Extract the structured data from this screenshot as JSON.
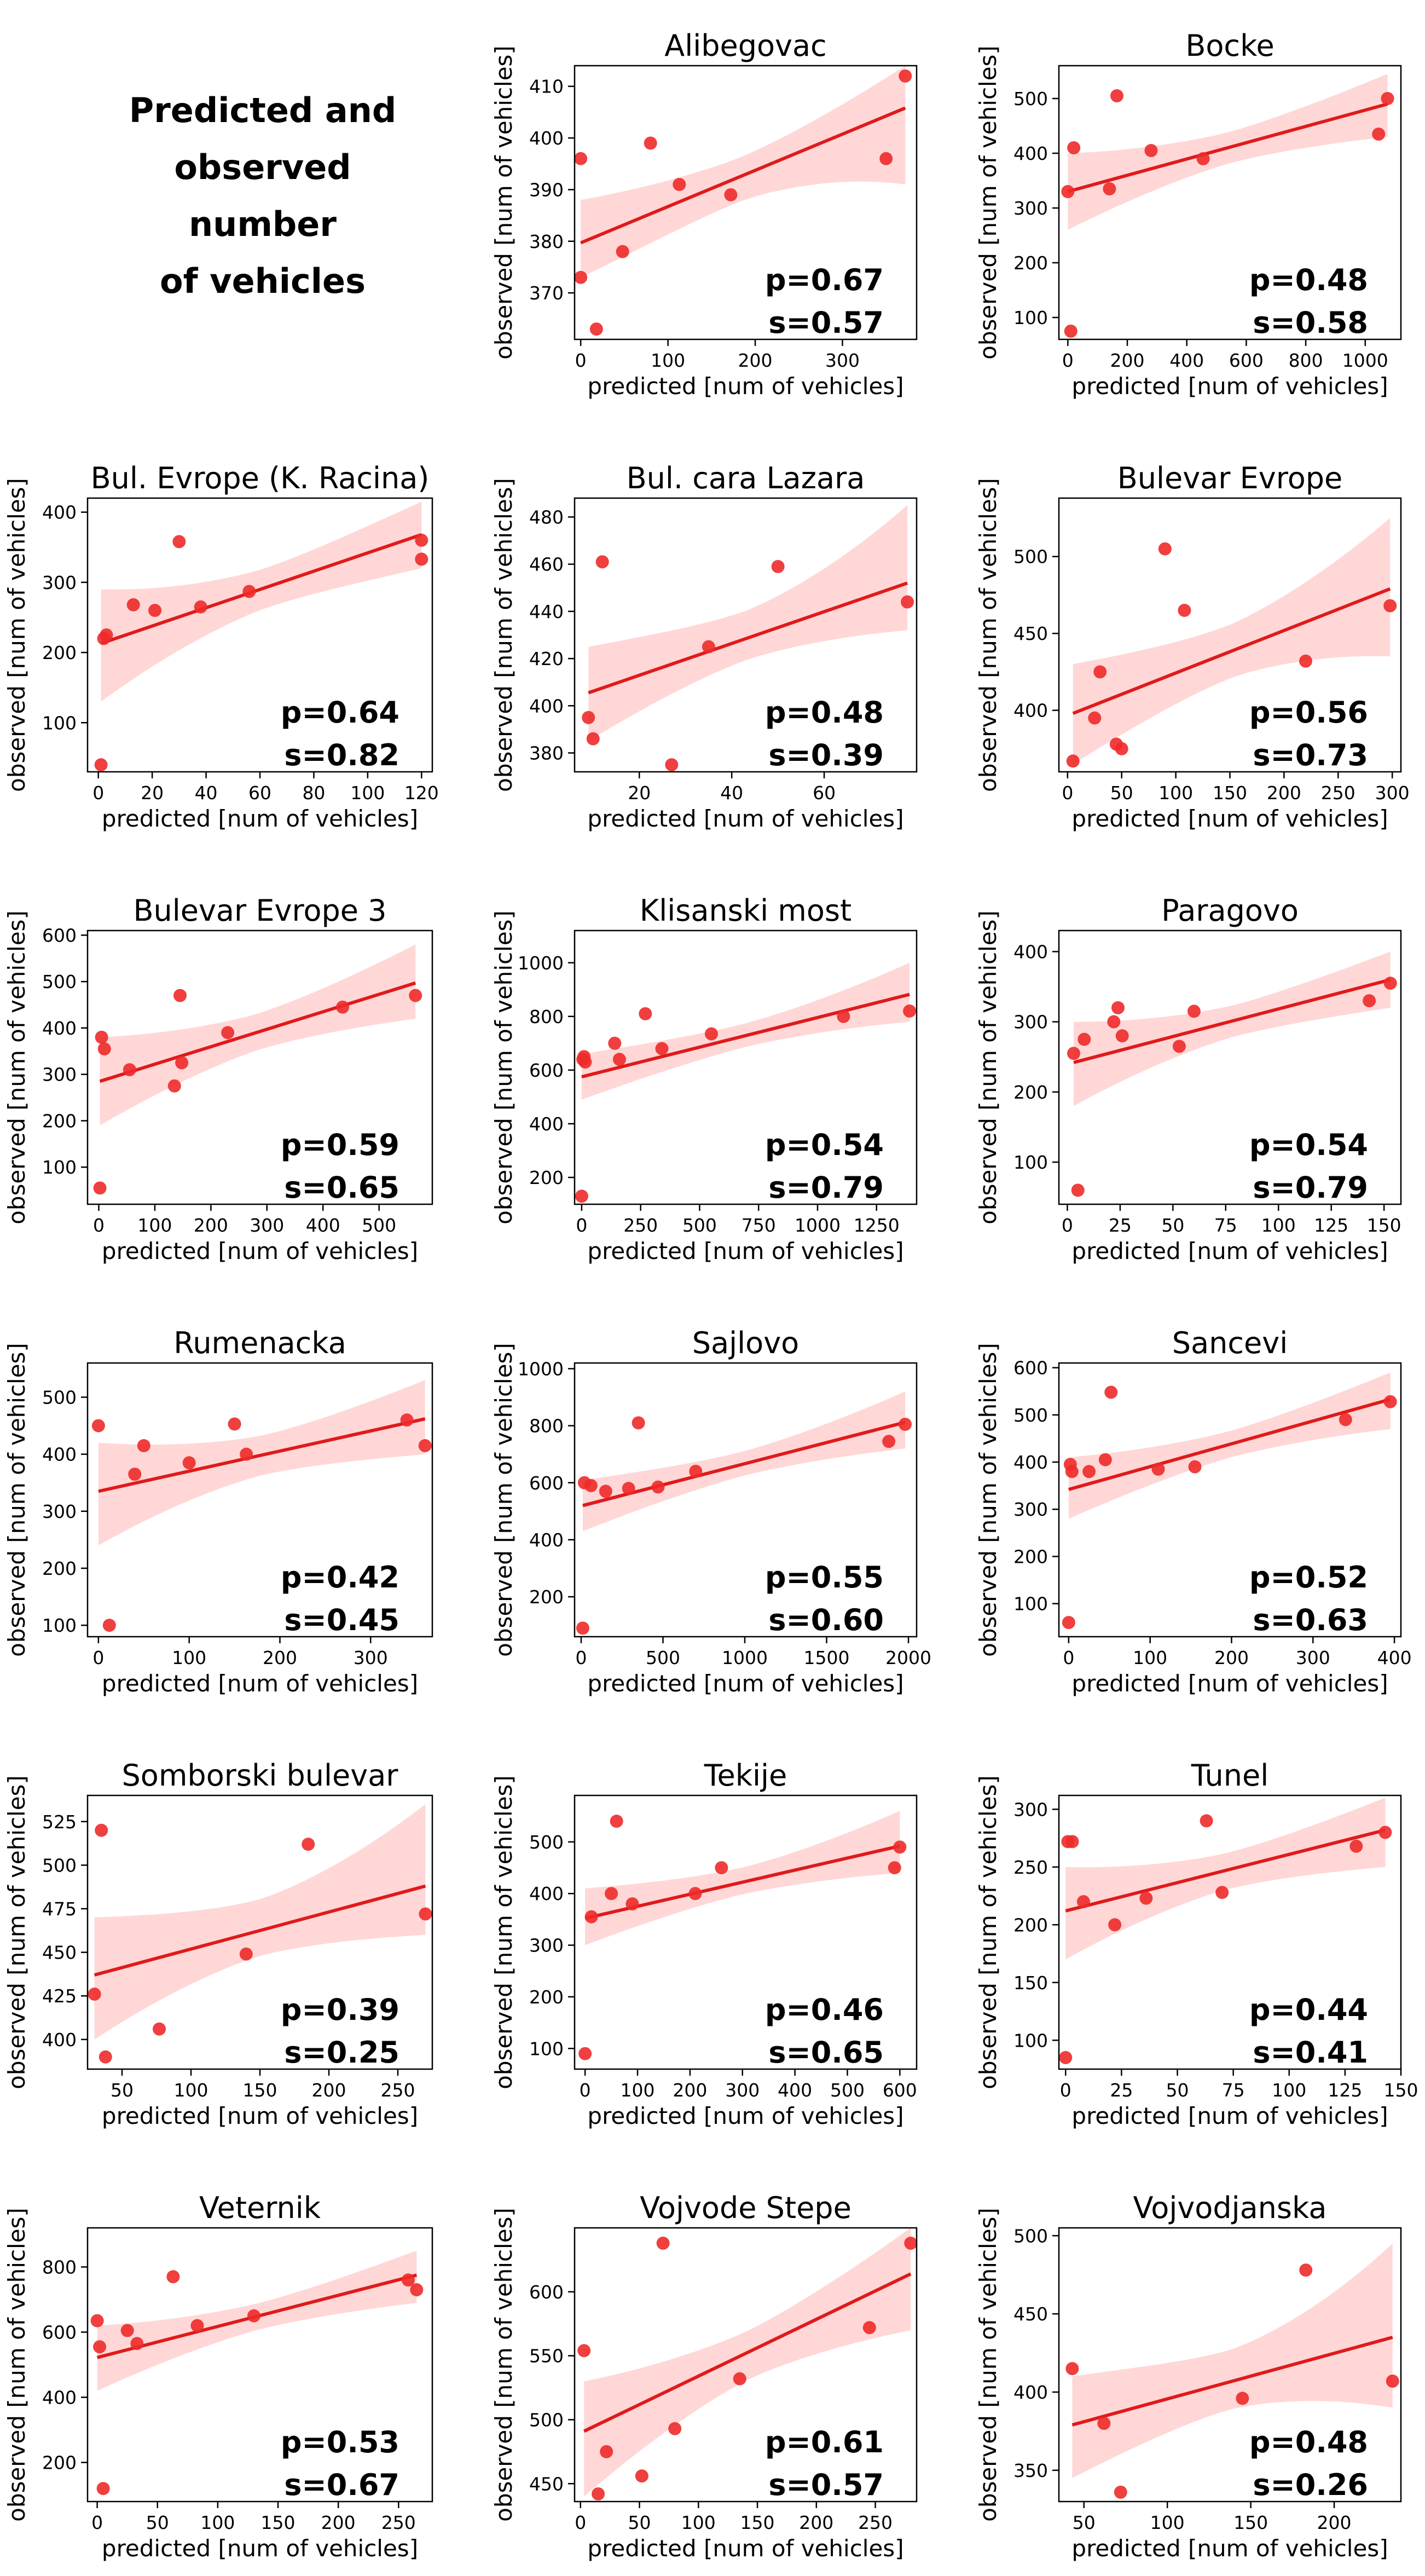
{
  "figure_title": [
    "Predicted and",
    "observed",
    "number",
    "of vehicles"
  ],
  "colors": {
    "point": "#ee2a2a",
    "line": "#e01a1a",
    "band": "#ffd0d0",
    "text": "#000000"
  },
  "chart_data": [
    {
      "type": "scatter",
      "title": "Alibegovac",
      "xlabel": "predicted [num of vehicles]",
      "ylabel": "observed [num of vehicles]",
      "xlim": [
        -7,
        385
      ],
      "ylim": [
        361,
        414
      ],
      "xticks": [
        0,
        100,
        200,
        300
      ],
      "yticks": [
        370,
        380,
        390,
        400,
        410
      ],
      "x": [
        0,
        0,
        18,
        48,
        80,
        113,
        172,
        350,
        372
      ],
      "y": [
        373,
        396,
        363,
        378,
        399,
        391,
        389,
        396,
        412
      ],
      "fit_y": [
        379.7,
        405.8
      ],
      "band_lower": [
        373,
        391
      ],
      "band_upper": [
        388,
        414
      ],
      "p": "p=0.67",
      "s": "s=0.57"
    },
    {
      "type": "scatter",
      "title": "Bocke",
      "xlabel": "predicted [num of vehicles]",
      "ylabel": "observed [num of vehicles]",
      "xlim": [
        -30,
        1120
      ],
      "ylim": [
        60,
        560
      ],
      "xticks": [
        0,
        200,
        400,
        600,
        800,
        1000
      ],
      "yticks": [
        100,
        200,
        300,
        400,
        500
      ],
      "x": [
        0,
        10,
        20,
        140,
        165,
        280,
        455,
        1045,
        1075
      ],
      "y": [
        330,
        75,
        410,
        335,
        505,
        405,
        390,
        435,
        500
      ],
      "fit_y": [
        330,
        490
      ],
      "band_lower": [
        260,
        430
      ],
      "band_upper": [
        400,
        545
      ],
      "p": "p=0.48",
      "s": "s=0.58"
    },
    {
      "type": "scatter",
      "title": "Bul. Evrope (K. Racina)",
      "xlabel": "predicted [num of vehicles]",
      "ylabel": "observed [num of vehicles]",
      "xlim": [
        -4,
        124
      ],
      "ylim": [
        30,
        420
      ],
      "xticks": [
        0,
        20,
        40,
        60,
        80,
        100,
        120
      ],
      "yticks": [
        100,
        200,
        300,
        400
      ],
      "x": [
        1,
        2,
        3,
        13,
        21,
        30,
        38,
        56,
        120,
        120
      ],
      "y": [
        40,
        220,
        225,
        268,
        260,
        358,
        265,
        287,
        333,
        360
      ],
      "fit_y": [
        213,
        368
      ],
      "band_lower": [
        130,
        320
      ],
      "band_upper": [
        290,
        415
      ],
      "p": "p=0.64",
      "s": "s=0.82"
    },
    {
      "type": "scatter",
      "title": "Bul. cara Lazara",
      "xlabel": "predicted [num of vehicles]",
      "ylabel": "observed [num of vehicles]",
      "xlim": [
        6,
        80
      ],
      "ylim": [
        372,
        488
      ],
      "xticks": [
        20,
        40,
        60
      ],
      "yticks": [
        380,
        400,
        420,
        440,
        460,
        480
      ],
      "x": [
        9,
        10,
        12,
        27,
        35,
        50,
        78
      ],
      "y": [
        395,
        386,
        461,
        375,
        425,
        459,
        444
      ],
      "fit_y": [
        405.5,
        452
      ],
      "band_lower": [
        385,
        432
      ],
      "band_upper": [
        425,
        485
      ],
      "p": "p=0.48",
      "s": "s=0.39"
    },
    {
      "type": "scatter",
      "title": "Bulevar Evrope",
      "xlabel": "predicted [num of vehicles]",
      "ylabel": "observed [num of vehicles]",
      "xlim": [
        -8,
        308
      ],
      "ylim": [
        360,
        538
      ],
      "xticks": [
        0,
        50,
        100,
        150,
        200,
        250,
        300
      ],
      "yticks": [
        400,
        450,
        500
      ],
      "x": [
        5,
        25,
        30,
        45,
        50,
        90,
        108,
        220,
        298
      ],
      "y": [
        367,
        395,
        425,
        378,
        375,
        505,
        465,
        432,
        468
      ],
      "fit_y": [
        398,
        479
      ],
      "band_lower": [
        365,
        435
      ],
      "band_upper": [
        430,
        525
      ],
      "p": "p=0.56",
      "s": "s=0.73"
    },
    {
      "type": "scatter",
      "title": "Bulevar Evrope 3",
      "xlabel": "predicted [num of vehicles]",
      "ylabel": "observed [num of vehicles]",
      "xlim": [
        -20,
        595
      ],
      "ylim": [
        20,
        610
      ],
      "xticks": [
        0,
        100,
        200,
        300,
        400,
        500,
        600
      ],
      "yticks": [
        100,
        200,
        300,
        400,
        500,
        600
      ],
      "x": [
        2,
        5,
        10,
        55,
        135,
        145,
        148,
        230,
        435,
        565
      ],
      "y": [
        55,
        380,
        355,
        310,
        275,
        470,
        325,
        390,
        445,
        470
      ],
      "fit_y": [
        285,
        497
      ],
      "band_lower": [
        190,
        420
      ],
      "band_upper": [
        380,
        580
      ],
      "p": "p=0.59",
      "s": "s=0.65"
    },
    {
      "type": "scatter",
      "title": "Klisanski most",
      "xlabel": "predicted [num of vehicles]",
      "ylabel": "observed [num of vehicles]",
      "xlim": [
        -30,
        1420
      ],
      "ylim": [
        100,
        1120
      ],
      "xticks": [
        0,
        250,
        500,
        750,
        1000,
        1250
      ],
      "yticks": [
        200,
        400,
        600,
        800,
        1000
      ],
      "x": [
        0,
        5,
        10,
        15,
        140,
        160,
        270,
        340,
        550,
        1110,
        1390
      ],
      "y": [
        130,
        640,
        650,
        630,
        700,
        640,
        810,
        680,
        735,
        800,
        820
      ],
      "fit_y": [
        575,
        882
      ],
      "band_lower": [
        490,
        780
      ],
      "band_upper": [
        660,
        1000
      ],
      "p": "p=0.54",
      "s": "s=0.79"
    },
    {
      "type": "scatter",
      "title": "Paragovo",
      "xlabel": "predicted [num of vehicles]",
      "ylabel": "observed [num of vehicles]",
      "xlim": [
        -4,
        158
      ],
      "ylim": [
        40,
        430
      ],
      "xticks": [
        0,
        25,
        50,
        75,
        100,
        125,
        150
      ],
      "yticks": [
        100,
        200,
        300,
        400
      ],
      "x": [
        3,
        5,
        8,
        22,
        24,
        26,
        53,
        60,
        143,
        153
      ],
      "y": [
        255,
        60,
        275,
        300,
        320,
        280,
        265,
        315,
        330,
        355
      ],
      "fit_y": [
        242,
        360
      ],
      "band_lower": [
        180,
        320
      ],
      "band_upper": [
        300,
        400
      ],
      "p": "p=0.54",
      "s": "s=0.79"
    },
    {
      "type": "scatter",
      "title": "Rumenacka",
      "xlabel": "predicted [num of vehicles]",
      "ylabel": "observed [num of vehicles]",
      "xlim": [
        -12,
        368
      ],
      "ylim": [
        80,
        560
      ],
      "xticks": [
        0,
        100,
        200,
        300
      ],
      "yticks": [
        100,
        200,
        300,
        400,
        500
      ],
      "x": [
        0,
        12,
        40,
        50,
        100,
        150,
        163,
        340,
        360
      ],
      "y": [
        450,
        100,
        365,
        415,
        385,
        453,
        400,
        460,
        415
      ],
      "fit_y": [
        335,
        462
      ],
      "band_lower": [
        240,
        400
      ],
      "band_upper": [
        420,
        530
      ],
      "p": "p=0.42",
      "s": "s=0.45"
    },
    {
      "type": "scatter",
      "title": "Sajlovo",
      "xlabel": "predicted [num of vehicles]",
      "ylabel": "observed [num of vehicles]",
      "xlim": [
        -40,
        2050
      ],
      "ylim": [
        60,
        1020
      ],
      "xticks": [
        0,
        500,
        1000,
        1500,
        2000
      ],
      "yticks": [
        200,
        400,
        600,
        800,
        1000
      ],
      "x": [
        10,
        20,
        60,
        150,
        290,
        350,
        470,
        700,
        1880,
        1980
      ],
      "y": [
        90,
        600,
        590,
        570,
        580,
        810,
        585,
        640,
        745,
        805
      ],
      "fit_y": [
        520,
        812
      ],
      "band_lower": [
        430,
        720
      ],
      "band_upper": [
        610,
        920
      ],
      "p": "p=0.55",
      "s": "s=0.60"
    },
    {
      "type": "scatter",
      "title": "Sancevi",
      "xlabel": "predicted [num of vehicles]",
      "ylabel": "observed [num of vehicles]",
      "xlim": [
        -12,
        408
      ],
      "ylim": [
        30,
        610
      ],
      "xticks": [
        0,
        100,
        200,
        300,
        400
      ],
      "yticks": [
        100,
        200,
        300,
        400,
        500,
        600
      ],
      "x": [
        0,
        2,
        4,
        25,
        45,
        52,
        110,
        155,
        340,
        395
      ],
      "y": [
        60,
        395,
        380,
        380,
        405,
        548,
        385,
        390,
        490,
        528
      ],
      "fit_y": [
        342,
        533
      ],
      "band_lower": [
        280,
        470
      ],
      "band_upper": [
        410,
        590
      ],
      "p": "p=0.52",
      "s": "s=0.63"
    },
    {
      "type": "scatter",
      "title": "Somborski bulevar",
      "xlabel": "predicted [num of vehicles]",
      "ylabel": "observed [num of vehicles]",
      "xlim": [
        25,
        275
      ],
      "ylim": [
        383,
        540
      ],
      "xticks": [
        50,
        100,
        150,
        200,
        250
      ],
      "yticks": [
        400,
        425,
        450,
        475,
        500,
        525
      ],
      "x": [
        30,
        35,
        38,
        77,
        140,
        185,
        270
      ],
      "y": [
        426,
        520,
        390,
        406,
        449,
        512,
        472
      ],
      "fit_y": [
        437,
        488
      ],
      "band_lower": [
        400,
        460
      ],
      "band_upper": [
        470,
        535
      ],
      "p": "p=0.39",
      "s": "s=0.25"
    },
    {
      "type": "scatter",
      "title": "Tekije",
      "xlabel": "predicted [num of vehicles]",
      "ylabel": "observed [num of vehicles]",
      "xlim": [
        -20,
        632
      ],
      "ylim": [
        60,
        590
      ],
      "xticks": [
        0,
        100,
        200,
        300,
        400,
        500,
        600
      ],
      "yticks": [
        100,
        200,
        300,
        400,
        500
      ],
      "x": [
        0,
        12,
        50,
        60,
        90,
        210,
        260,
        590,
        600
      ],
      "y": [
        90,
        355,
        400,
        540,
        380,
        400,
        450,
        450,
        490
      ],
      "fit_y": [
        352,
        492
      ],
      "band_lower": [
        300,
        440
      ],
      "band_upper": [
        410,
        560
      ],
      "p": "p=0.46",
      "s": "s=0.65"
    },
    {
      "type": "scatter",
      "title": "Tunel",
      "xlabel": "predicted [num of vehicles]",
      "ylabel": "observed [num of vehicles]",
      "xlim": [
        -3,
        150
      ],
      "ylim": [
        75,
        312
      ],
      "xticks": [
        0,
        25,
        50,
        75,
        100,
        125,
        150
      ],
      "yticks": [
        100,
        150,
        200,
        250,
        300
      ],
      "x": [
        0,
        1,
        3,
        8,
        22,
        36,
        63,
        70,
        130,
        143
      ],
      "y": [
        85,
        272,
        272,
        220,
        200,
        223,
        290,
        228,
        268,
        280
      ],
      "fit_y": [
        212,
        282
      ],
      "band_lower": [
        170,
        250
      ],
      "band_upper": [
        250,
        310
      ],
      "p": "p=0.44",
      "s": "s=0.41"
    },
    {
      "type": "scatter",
      "title": "Veternik",
      "xlabel": "predicted [num of vehicles]",
      "ylabel": "observed [num of vehicles]",
      "xlim": [
        -8,
        278
      ],
      "ylim": [
        80,
        920
      ],
      "xticks": [
        0,
        50,
        100,
        150,
        200,
        250
      ],
      "yticks": [
        200,
        400,
        600,
        800
      ],
      "x": [
        0,
        2,
        5,
        25,
        33,
        63,
        83,
        130,
        258,
        265
      ],
      "y": [
        635,
        555,
        120,
        605,
        565,
        770,
        620,
        650,
        760,
        730
      ],
      "fit_y": [
        522,
        775
      ],
      "band_lower": [
        420,
        690
      ],
      "band_upper": [
        620,
        850
      ],
      "p": "p=0.53",
      "s": "s=0.67"
    },
    {
      "type": "scatter",
      "title": "Vojvode Stepe",
      "xlabel": "predicted [num of vehicles]",
      "ylabel": "observed [num of vehicles]",
      "xlim": [
        -5,
        285
      ],
      "ylim": [
        436,
        650
      ],
      "xticks": [
        0,
        50,
        100,
        150,
        200,
        250
      ],
      "yticks": [
        450,
        500,
        550,
        600
      ],
      "x": [
        3,
        15,
        22,
        52,
        70,
        80,
        135,
        245,
        280
      ],
      "y": [
        554,
        442,
        475,
        456,
        638,
        493,
        532,
        572,
        638
      ],
      "fit_y": [
        491,
        614
      ],
      "band_lower": [
        440,
        570
      ],
      "band_upper": [
        530,
        650
      ],
      "p": "p=0.61",
      "s": "s=0.57"
    },
    {
      "type": "scatter",
      "title": "Vojvodjanska",
      "xlabel": "predicted [num of vehicles]",
      "ylabel": "observed [num of vehicles]",
      "xlim": [
        35,
        240
      ],
      "ylim": [
        330,
        505
      ],
      "xticks": [
        50,
        100,
        150,
        200
      ],
      "yticks": [
        350,
        400,
        450,
        500
      ],
      "x": [
        43,
        62,
        72,
        145,
        183,
        235
      ],
      "y": [
        415,
        380,
        336,
        396,
        478,
        407
      ],
      "fit_y": [
        379,
        435
      ],
      "band_lower": [
        345,
        390
      ],
      "band_upper": [
        410,
        495
      ],
      "p": "p=0.48",
      "s": "s=0.26"
    }
  ]
}
